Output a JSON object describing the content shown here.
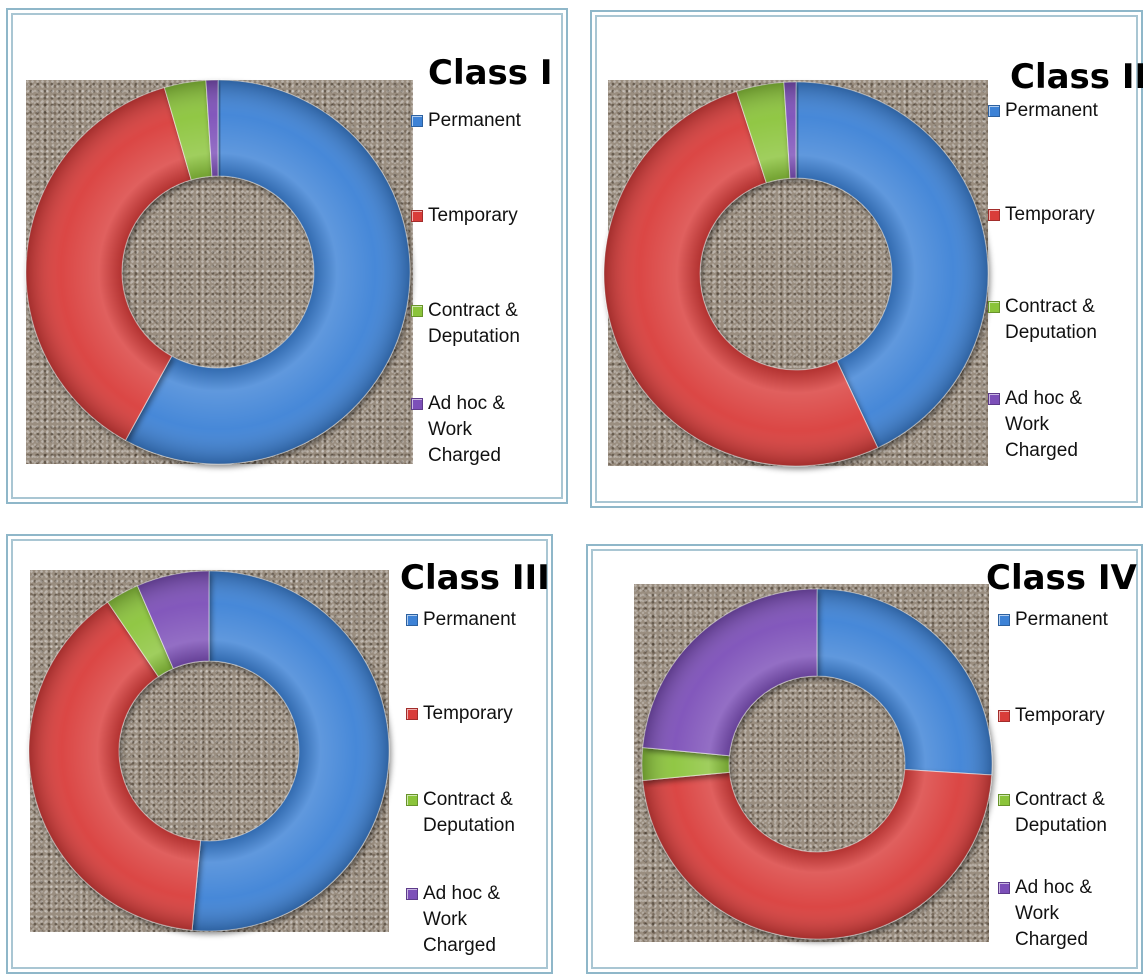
{
  "colors": {
    "Permanent": "#3d82d6",
    "Temporary": "#d93d3a",
    "Contract": "#8bc43a",
    "Adhoc": "#7c4fb8"
  },
  "chart_data": [
    {
      "type": "pie",
      "title": "Class I",
      "legend": [
        "Permanent",
        "Temporary",
        "Contract & Deputation",
        "Ad hoc & Work Charged"
      ],
      "values": [
        58,
        37.5,
        3.5,
        1
      ]
    },
    {
      "type": "pie",
      "title": "Class II",
      "legend": [
        "Permanent",
        "Temporary",
        "Contract & Deputation",
        "Ad hoc & Work Charged"
      ],
      "values": [
        43,
        52,
        4,
        1
      ]
    },
    {
      "type": "pie",
      "title": "Class III",
      "legend": [
        "Permanent",
        "Temporary",
        "Contract & Deputation",
        "Ad hoc & Work Charged"
      ],
      "values": [
        51.5,
        39,
        3,
        6.5
      ]
    },
    {
      "type": "pie",
      "title": "Class IV",
      "legend": [
        "Permanent",
        "Temporary",
        "Contract & Deputation",
        "Ad hoc & Work Charged"
      ],
      "values": [
        26,
        47.5,
        3,
        23.5
      ]
    }
  ]
}
